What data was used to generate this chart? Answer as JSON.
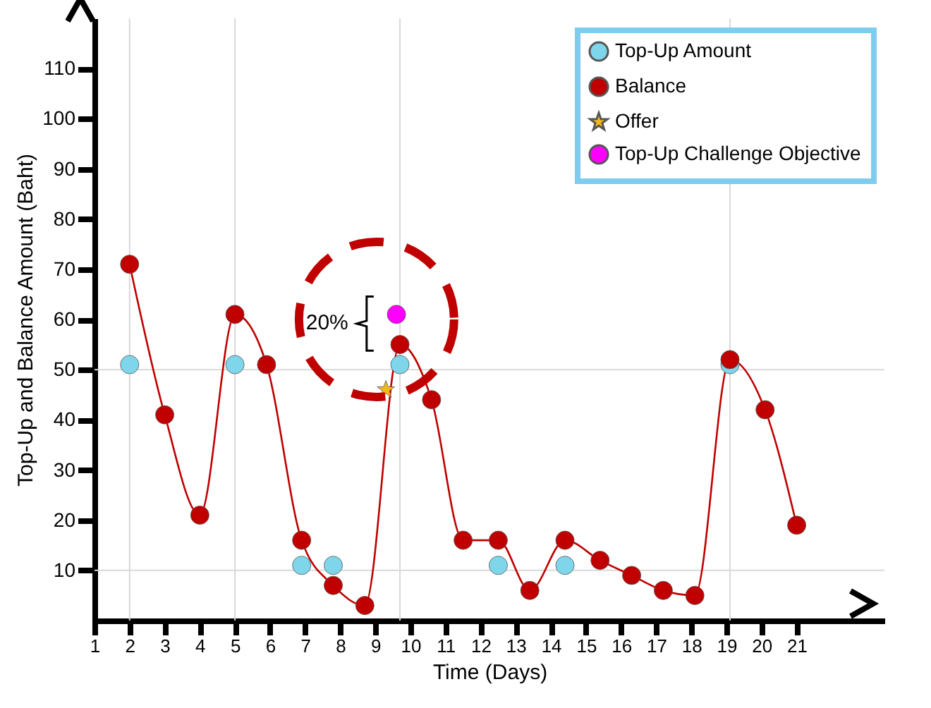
{
  "chart_data": {
    "type": "scatter",
    "xlabel": "Time (Days)",
    "ylabel": "Top-Up and Balance Amount (Baht)",
    "xlim": [
      1,
      23.5
    ],
    "ylim": [
      0,
      120
    ],
    "xticks": [
      1,
      2,
      3,
      4,
      5,
      6,
      7,
      8,
      9,
      10,
      11,
      12,
      13,
      14,
      15,
      16,
      17,
      18,
      19,
      20,
      21
    ],
    "yticks": [
      10,
      20,
      30,
      40,
      50,
      60,
      70,
      80,
      90,
      100,
      110
    ],
    "legend": "top right",
    "series": [
      {
        "name": "Top-Up Amount",
        "color": "#7fd6ea",
        "marker": "circle",
        "x": [
          2,
          5,
          6.9,
          7.8,
          9.7,
          12.5,
          14.4,
          19.1
        ],
        "values": [
          51,
          51,
          11,
          11,
          51,
          11,
          11,
          51
        ]
      },
      {
        "name": "Balance",
        "type": "line",
        "color": "#c00000",
        "marker": "circle",
        "x": [
          2,
          3,
          4,
          5,
          5.9,
          6.9,
          7.8,
          8.7,
          9.7,
          10.6,
          11.5,
          12.5,
          13.4,
          14.4,
          15.4,
          16.3,
          17.2,
          18.1,
          19.1,
          20.1,
          21
        ],
        "values": [
          71,
          41,
          21,
          61,
          51,
          16,
          7,
          3,
          55,
          44,
          16,
          16,
          6,
          16,
          12,
          9,
          6,
          5,
          52,
          42,
          19
        ]
      },
      {
        "name": "Offer",
        "color": "#f2b81a",
        "marker": "star",
        "x": [
          9.3
        ],
        "values": [
          46
        ]
      },
      {
        "name": "Top-Up Challenge Objective",
        "color": "#ff00ff",
        "marker": "circle",
        "x": [
          9.6
        ],
        "values": [
          61
        ]
      }
    ],
    "ref_lines": [
      {
        "axis": "y",
        "value": 10,
        "color": "#d9d9d9"
      },
      {
        "axis": "y",
        "value": 50,
        "color": "#d9d9d9"
      },
      {
        "axis": "x",
        "value": 2,
        "color": "#d9d9d9"
      },
      {
        "axis": "x",
        "value": 5,
        "color": "#d9d9d9"
      },
      {
        "axis": "x",
        "value": 9.7,
        "color": "#d9d9d9"
      },
      {
        "axis": "x",
        "value": 19.1,
        "color": "#d9d9d9"
      }
    ],
    "annotations": [
      "20%"
    ]
  }
}
